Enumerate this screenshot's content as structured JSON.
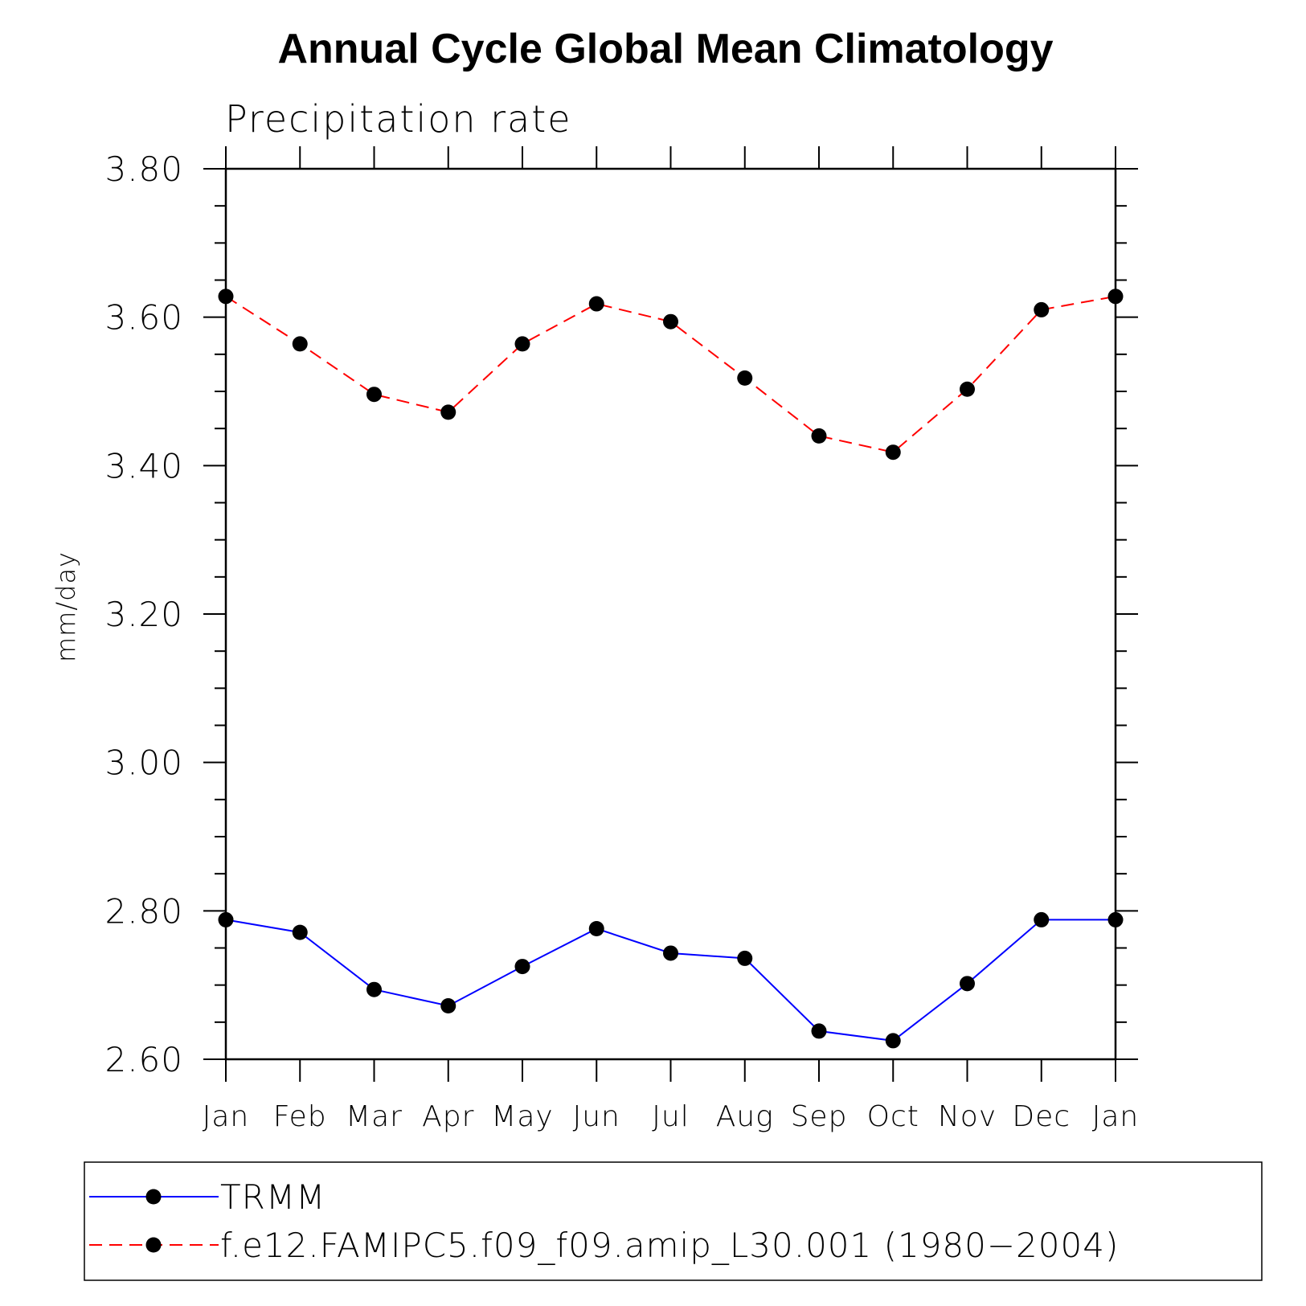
{
  "chart_data": {
    "type": "line",
    "title": "Annual Cycle Global Mean Climatology",
    "subtitle": "Precipitation rate",
    "xlabel": "",
    "ylabel": "mm/day",
    "categories": [
      "Jan",
      "Feb",
      "Mar",
      "Apr",
      "May",
      "Jun",
      "Jul",
      "Aug",
      "Sep",
      "Oct",
      "Nov",
      "Dec",
      "Jan"
    ],
    "ylim": [
      2.6,
      3.8
    ],
    "yticks": [
      "2.60",
      "2.80",
      "3.00",
      "3.20",
      "3.40",
      "3.60",
      "3.80"
    ],
    "grid": false,
    "legend_position": "bottom",
    "series": [
      {
        "name": "TRMM",
        "color": "#0000ff",
        "line_style": "solid",
        "marker": "filled-circle",
        "values": [
          2.788,
          2.771,
          2.694,
          2.672,
          2.725,
          2.776,
          2.743,
          2.736,
          2.638,
          2.625,
          2.702,
          2.788,
          2.788
        ]
      },
      {
        "name": "f.e12.FAMIPC5.f09_f09.amip_L30.001 (1980−2004)",
        "color": "#ff0000",
        "line_style": "dashed",
        "marker": "filled-circle",
        "values": [
          3.628,
          3.564,
          3.496,
          3.472,
          3.564,
          3.618,
          3.594,
          3.518,
          3.44,
          3.418,
          3.503,
          3.61,
          3.628
        ]
      }
    ]
  }
}
